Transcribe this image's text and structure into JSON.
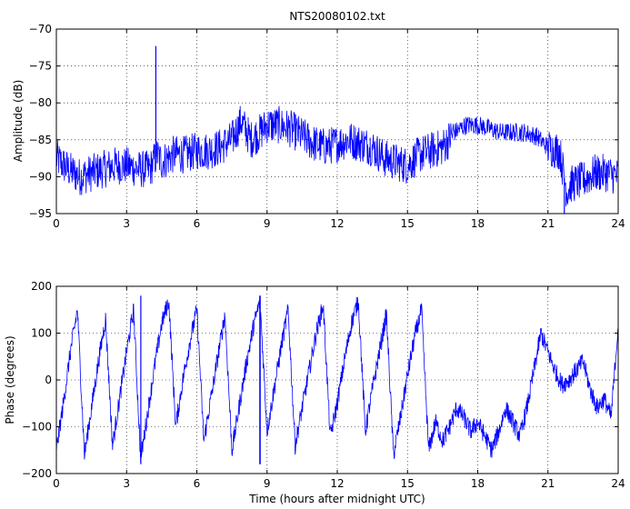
{
  "chart_data": [
    {
      "type": "line",
      "title": "NTS20080102.txt",
      "xlabel": "",
      "ylabel": "Amplitude (dB)",
      "xlim": [
        0,
        24
      ],
      "ylim": [
        -95,
        -70
      ],
      "xticks": [
        0,
        3,
        6,
        9,
        12,
        15,
        18,
        21,
        24
      ],
      "xtick_labels": [
        "0",
        "3",
        "6",
        "9",
        "12",
        "15",
        "18",
        "21",
        "24"
      ],
      "yticks": [
        -95,
        -90,
        -85,
        -80,
        -75,
        -70
      ],
      "ytick_labels": [
        "−95",
        "−90",
        "−85",
        "−80",
        "−75",
        "−70"
      ],
      "grid": true,
      "series_color": "#0000ff",
      "series": [
        {
          "x": [
            0,
            0.5,
            1,
            1.5,
            2,
            2.5,
            3,
            3.5,
            4,
            4.3,
            4.5,
            5,
            5.5,
            6,
            6.5,
            7,
            7.5,
            7.9,
            8.3,
            8.7,
            9,
            9.5,
            10,
            10.5,
            11,
            11.5,
            12,
            12.5,
            13,
            13.5,
            14,
            14.5,
            15,
            15.5,
            16,
            16.5,
            17,
            17.5,
            18,
            18.5,
            19,
            19.5,
            20,
            20.5,
            21,
            21.5,
            21.8,
            22,
            22.5,
            23,
            23.5,
            24
          ],
          "y": [
            -87.5,
            -89,
            -90,
            -89.5,
            -89,
            -88.5,
            -88.5,
            -89,
            -89,
            -87,
            -88,
            -87,
            -87,
            -86.5,
            -86.5,
            -86,
            -85,
            -82.5,
            -85,
            -84,
            -83,
            -83,
            -83.5,
            -84.5,
            -85.5,
            -86,
            -85.5,
            -85,
            -85.5,
            -86,
            -87.5,
            -88,
            -88.5,
            -87,
            -86.5,
            -86,
            -84,
            -83,
            -83,
            -83.5,
            -84,
            -84,
            -84,
            -84.5,
            -86,
            -86.5,
            -92,
            -91,
            -90.5,
            -89.5,
            -89.5,
            -90
          ]
        }
      ],
      "spikes": [
        {
          "x": 4.25,
          "y": -72.3
        },
        {
          "x": 21.7,
          "y": -95
        }
      ]
    },
    {
      "type": "line",
      "title": "",
      "xlabel": "Time (hours after midnight UTC)",
      "ylabel": "Phase (degrees)",
      "xlim": [
        0,
        24
      ],
      "ylim": [
        -200,
        200
      ],
      "xticks": [
        0,
        3,
        6,
        9,
        12,
        15,
        18,
        21,
        24
      ],
      "xtick_labels": [
        "0",
        "3",
        "6",
        "9",
        "12",
        "15",
        "18",
        "21",
        "24"
      ],
      "yticks": [
        -200,
        -100,
        0,
        100,
        200
      ],
      "ytick_labels": [
        "−200",
        "−100",
        "0",
        "100",
        "200"
      ],
      "grid": true,
      "series_color": "#0000ff",
      "wrap_range": [
        -180,
        180
      ],
      "series": [
        {
          "x": [
            0,
            0.3,
            0.6,
            0.9,
            1.2,
            1.5,
            1.8,
            2.1,
            2.4,
            2.7,
            3,
            3.3,
            3.6,
            3.9,
            4.2,
            4.5,
            4.8,
            5.1,
            5.4,
            5.7,
            6,
            6.3,
            6.6,
            6.9,
            7.2,
            7.5,
            7.8,
            8.1,
            8.4,
            8.7,
            9,
            9.3,
            9.6,
            9.9,
            10.2,
            10.5,
            10.8,
            11.1,
            11.4,
            11.7,
            12,
            12.3,
            12.6,
            12.9,
            13.2,
            13.5,
            13.8,
            14.1,
            14.4,
            14.7,
            15,
            15.3,
            15.6,
            15.9,
            16.2,
            16.5,
            16.8,
            17.1,
            17.4,
            17.7,
            18,
            18.3,
            18.6,
            18.9,
            19.2,
            19.5,
            19.8,
            20.1,
            20.4,
            20.7,
            21,
            21.3,
            21.6,
            21.9,
            22.2,
            22.5,
            22.8,
            23.1,
            23.4,
            23.7,
            24
          ],
          "y": [
            -150,
            -50,
            60,
            150,
            -160,
            -60,
            40,
            130,
            -140,
            -40,
            60,
            150,
            -170,
            -70,
            30,
            120,
            170,
            -100,
            0,
            80,
            150,
            -130,
            -40,
            50,
            140,
            -150,
            -60,
            30,
            110,
            170,
            -110,
            -20,
            70,
            150,
            -140,
            -60,
            20,
            100,
            160,
            -120,
            -50,
            40,
            120,
            170,
            -110,
            -20,
            60,
            140,
            -160,
            -80,
            10,
            90,
            150,
            -150,
            -90,
            -130,
            -100,
            -60,
            -80,
            -110,
            -90,
            -120,
            -150,
            -110,
            -60,
            -90,
            -120,
            -60,
            20,
            100,
            60,
            20,
            -10,
            0,
            20,
            40,
            -20,
            -60,
            -40,
            -80,
            120
          ]
        }
      ]
    }
  ]
}
